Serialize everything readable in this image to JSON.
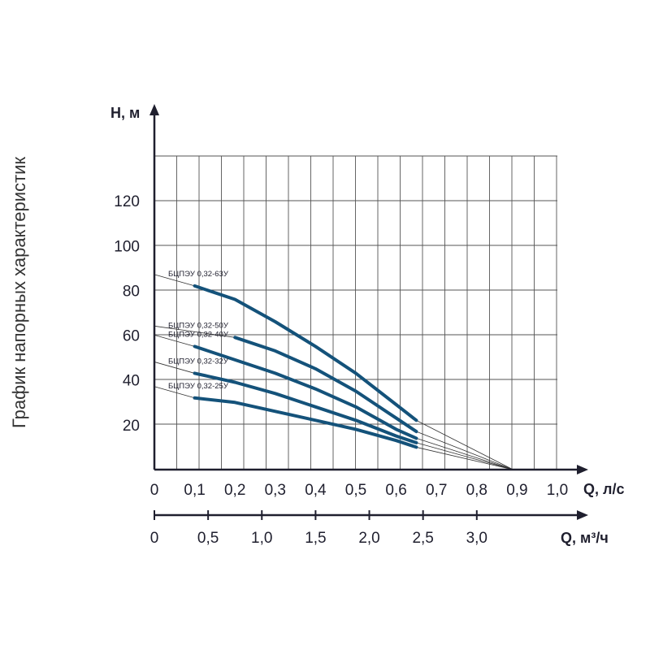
{
  "side_title": "График напорных характеристик",
  "chart_data": {
    "type": "line",
    "ylabel": "H, м",
    "xlabel": "Q, л/с",
    "x2label": "Q, м³/ч",
    "xlim": [
      0,
      1.0
    ],
    "ylim": [
      0,
      140
    ],
    "grid": true,
    "yticks": [
      "20",
      "40",
      "60",
      "80",
      "100",
      "120"
    ],
    "xticks": [
      "0",
      "0,1",
      "0,2",
      "0,3",
      "0,4",
      "0,5",
      "0,6",
      "0,7",
      "0,8",
      "0,9",
      "1,0"
    ],
    "x2ticks": [
      "0",
      "0,5",
      "1,0",
      "1,5",
      "2,0",
      "2,5",
      "3,0"
    ],
    "x2_values": [
      0,
      0.5,
      1.0,
      1.5,
      2.0,
      2.5,
      3.0
    ],
    "x2_max": 3.75,
    "shutoff_x": 0.89,
    "series": [
      {
        "name": "БЦПЭУ 0,32-63У",
        "color": "#14527a",
        "x": [
          0.1,
          0.2,
          0.3,
          0.4,
          0.5,
          0.6,
          0.65
        ],
        "y": [
          82,
          76,
          66,
          55,
          43,
          29,
          22
        ]
      },
      {
        "name": "БЦПЭУ 0,32-50У",
        "color": "#14527a",
        "x": [
          0.2,
          0.3,
          0.4,
          0.5,
          0.6,
          0.65
        ],
        "y": [
          59,
          53,
          45,
          35,
          23,
          17
        ]
      },
      {
        "name": "БЦПЭУ 0,32-40У",
        "color": "#14527a",
        "x": [
          0.1,
          0.2,
          0.3,
          0.4,
          0.5,
          0.6,
          0.65
        ],
        "y": [
          55,
          49,
          43,
          36,
          28,
          18,
          14
        ]
      },
      {
        "name": "БЦПЭУ 0,32-32У",
        "color": "#14527a",
        "x": [
          0.1,
          0.2,
          0.3,
          0.4,
          0.5,
          0.6,
          0.65
        ],
        "y": [
          43,
          39,
          34,
          28,
          22,
          15,
          12
        ]
      },
      {
        "name": "БЦПЭУ 0,32-25У",
        "color": "#14527a",
        "x": [
          0.1,
          0.2,
          0.3,
          0.4,
          0.5,
          0.6,
          0.65
        ],
        "y": [
          32,
          30,
          26,
          22,
          18,
          13,
          10
        ]
      }
    ]
  }
}
